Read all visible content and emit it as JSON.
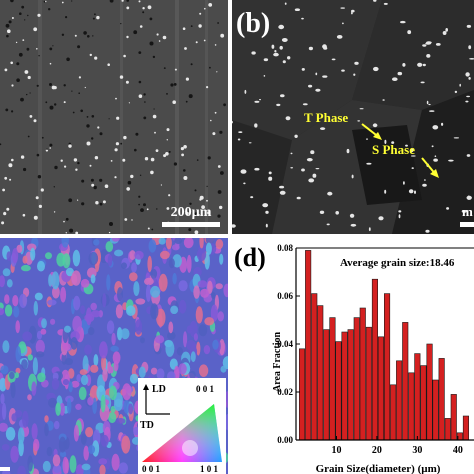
{
  "panel_a": {
    "scale_bar": "200µm"
  },
  "panel_b": {
    "label": "(b)",
    "phase_1": "T Phase",
    "phase_2": "S Phase",
    "scale_fragment": "m"
  },
  "panel_c": {
    "ipf_axes": {
      "ld": "LD",
      "td": "TD"
    },
    "triangle_labels": {
      "top": "0 0 1",
      "bottom_left": "0 0 1",
      "bottom_right": "1 0 1"
    },
    "colors": {
      "left": "#ff2020",
      "right": "#20a0ff",
      "top": "#20ff20"
    }
  },
  "panel_d": {
    "label": "(d)",
    "annotation": "Average grain size:18.46"
  },
  "chart_data": {
    "type": "bar",
    "xlabel": "Grain Size(diameter) (µm)",
    "ylabel": "Area Fraction",
    "xlim": [
      0,
      44
    ],
    "ylim": [
      0,
      0.08
    ],
    "x_ticks": [
      "10",
      "20",
      "30",
      "40"
    ],
    "y_ticks": [
      "0.00",
      "0.02",
      "0.04",
      "0.06",
      "0.08"
    ],
    "bar_color": "#d42020",
    "bar_width": 1.35,
    "series": [
      {
        "x": [
          1.5,
          3,
          4.5,
          6,
          7.5,
          9,
          10.5,
          12,
          13.5,
          15,
          16.5,
          18,
          19.5,
          21,
          22.5,
          24,
          25.5,
          27,
          28.5,
          30,
          31.5,
          33,
          34.5,
          36,
          37.5,
          39,
          40.5,
          42
        ],
        "values": [
          0.038,
          0.079,
          0.061,
          0.056,
          0.046,
          0.051,
          0.041,
          0.045,
          0.046,
          0.051,
          0.055,
          0.047,
          0.067,
          0.043,
          0.061,
          0.023,
          0.033,
          0.049,
          0.028,
          0.036,
          0.031,
          0.04,
          0.025,
          0.034,
          0.009,
          0.019,
          0.003,
          0.01
        ]
      }
    ]
  }
}
